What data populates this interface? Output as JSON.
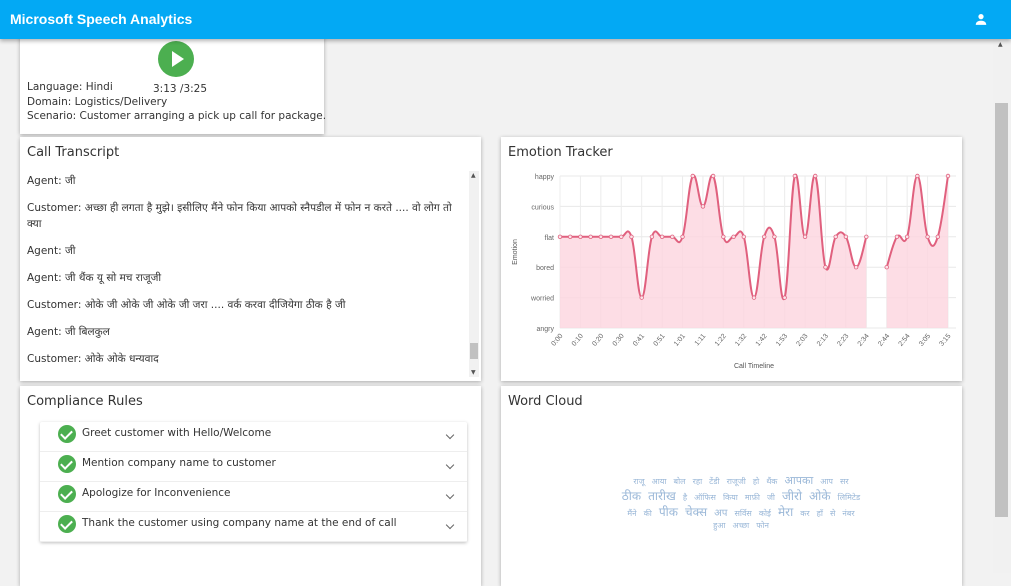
{
  "app": {
    "title": "Microsoft Speech Analytics",
    "user_icon": "account-icon",
    "accent": "#03a9f4"
  },
  "call_info": {
    "play_icon": "play-icon",
    "time": "3:13 /3:25",
    "language": "Language: Hindi",
    "domain": "Domain: Logistics/Delivery",
    "scenario": "Scenario: Customer arranging a pick up call for package."
  },
  "transcript": {
    "title": "Call Transcript",
    "lines": [
      "Agent:   जी",
      "Customer:  अच्छा ही लगता है मुझे। इसीलिए मैंने फोन किया आपको स्नैपडील में फोन न करते .... वो लोग तो क्या",
      "Agent:   जी",
      "Agent:  जी थैंक यू सो मच राजूजी",
      "Customer:   ओके जी ओके जी ओके जी जरा .... वर्क करवा दीजियेगा ठीक है जी",
      "Agent:  जी बिलकुल",
      "Customer:   ओके ओके धन्यवाद"
    ]
  },
  "emotion": {
    "title": "Emotion Tracker"
  },
  "chart_data": {
    "type": "line",
    "fill": true,
    "color": "#e0607e",
    "fill_color": "#fcd5de",
    "grid": true,
    "xlabel": "Call Timeline",
    "ylabel": "Emotion",
    "y_categories": [
      "angry",
      "worried",
      "bored",
      "flat",
      "curious",
      "happy"
    ],
    "x_tick_labels": [
      "0:00",
      "0:10",
      "0:20",
      "0:30",
      "0:41",
      "0:51",
      "1:01",
      "1:11",
      "1:22",
      "1:32",
      "1:42",
      "1:53",
      "2:03",
      "2:13",
      "2:23",
      "2:34",
      "2:44",
      "2:54",
      "3:05",
      "3:15"
    ],
    "values": [
      "flat",
      "flat",
      "flat",
      "flat",
      "flat",
      "flat",
      "flat",
      "flat",
      "worried",
      "flat",
      "flat",
      "flat",
      "flat",
      "happy",
      "curious",
      "happy",
      "flat",
      "flat",
      "flat",
      "worried",
      "flat",
      "flat",
      "worried",
      "happy",
      "flat",
      "happy",
      "bored",
      "flat",
      "flat",
      "bored",
      "flat",
      null,
      "bored",
      "flat",
      "flat",
      "happy",
      "flat",
      "flat",
      "happy"
    ]
  },
  "compliance": {
    "title": "Compliance Rules",
    "rules": [
      {
        "label": "Greet customer with Hello/Welcome",
        "status": "passed"
      },
      {
        "label": "Mention company name to customer",
        "status": "passed"
      },
      {
        "label": "Apologize for Inconvenience",
        "status": "passed"
      },
      {
        "label": "Thank the customer using company name at the end of call",
        "status": "passed"
      }
    ]
  },
  "wordcloud": {
    "title": "Word Cloud",
    "words": [
      "राजू",
      "आया",
      "बोल",
      "रहा",
      "टेंडी",
      "राजूजी",
      "हो",
      "थैंक",
      "आपका",
      "आप",
      "सर",
      "ठीक",
      "तारीख",
      "है",
      "ऑफिस",
      "किया",
      "माफ़ी",
      "जी",
      "जीरो",
      "ओके",
      "लिमिटेड",
      "मैंने",
      "की",
      "पीक",
      "चेक्स",
      "अप",
      "सर्विस",
      "कोई",
      "मेरा",
      "कर",
      "हाँ",
      "से",
      "नंबर",
      "हुआ",
      "अच्छा",
      "फोन"
    ]
  }
}
